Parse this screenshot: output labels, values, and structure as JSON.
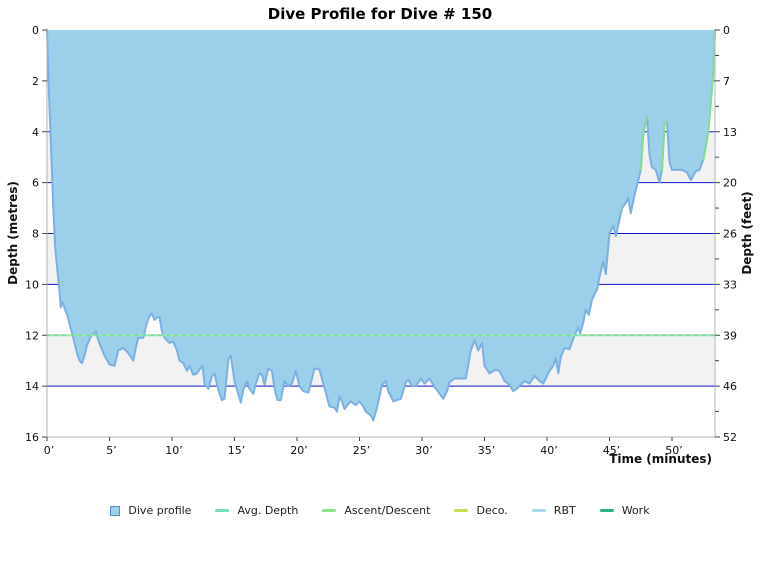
{
  "title": "Dive Profile for Dive # 150",
  "axes": {
    "left_label": "Depth (metres)",
    "right_label": "Depth (feet)",
    "bottom_label": "Time (minutes)",
    "left_tick_labels": [
      "0",
      "2",
      "4",
      "6",
      "8",
      "10",
      "12",
      "14",
      "16"
    ],
    "right_tick_labels": [
      "0",
      "7",
      "13",
      "20",
      "26",
      "33",
      "39",
      "46",
      "52"
    ],
    "bottom_tick_labels": [
      "0’",
      "5’",
      "10’",
      "15’",
      "20’",
      "25’",
      "30’",
      "35’",
      "40’",
      "45’",
      "50’"
    ]
  },
  "legend": [
    {
      "label": "Dive profile",
      "marker": "square",
      "color": "#9cd0ea",
      "border": "#5b8dc8"
    },
    {
      "label": "Avg. Depth",
      "marker": "line",
      "color": "#74ddbe"
    },
    {
      "label": "Ascent/Descent",
      "marker": "line",
      "color": "#8ce08c"
    },
    {
      "label": "Deco.",
      "marker": "line",
      "color": "#cdda52"
    },
    {
      "label": "RBT",
      "marker": "line",
      "color": "#a6d9ef"
    },
    {
      "label": "Work",
      "marker": "line",
      "color": "#2eb384"
    }
  ],
  "colors": {
    "profile_fill": "#9ccfea",
    "profile_edge": "#7cb0e2",
    "ascent_edge": "#84de8c",
    "gridline_blue": "#1515ce",
    "avg_line_green": "#9ae69e",
    "avg_line_teal": "#6fd7ce",
    "band_gray": "#f2f2f2",
    "axis_line": "#abb5bf",
    "tick_color": "#444444",
    "text_color": "#111111"
  },
  "chart_data": {
    "type": "area",
    "title": "Dive Profile for Dive # 150",
    "xlabel": "Time (minutes)",
    "ylabel_left": "Depth (metres)",
    "ylabel_right": "Depth (feet)",
    "xlim_minutes": [
      0,
      53.44
    ],
    "ylim_metres": [
      0,
      16
    ],
    "x_major_tick_minutes": 5,
    "y_major_tick_metres": 2,
    "avg_depth_m": 12,
    "max_depth_m": 15.35,
    "gridlines_m": [
      2,
      4,
      6,
      8,
      10,
      12,
      14
    ],
    "gray_bands_m": [
      [
        0,
        2
      ],
      [
        4,
        6
      ],
      [
        8,
        10
      ],
      [
        12,
        14
      ]
    ],
    "ascent_green_segments_min": [
      [
        47.4,
        48.0
      ],
      [
        49.2,
        49.6
      ],
      [
        52.4,
        53.44
      ]
    ],
    "profile_time_depth": [
      [
        0,
        0
      ],
      [
        0.1,
        1.6
      ],
      [
        0.2,
        3.1
      ],
      [
        0.35,
        5.0
      ],
      [
        0.5,
        7.0
      ],
      [
        0.65,
        8.5
      ],
      [
        0.8,
        9.3
      ],
      [
        0.95,
        10.0
      ],
      [
        1.1,
        10.9
      ],
      [
        1.25,
        10.7
      ],
      [
        1.45,
        11.0
      ],
      [
        1.65,
        11.25
      ],
      [
        1.85,
        11.65
      ],
      [
        2.0,
        11.9
      ],
      [
        2.2,
        12.3
      ],
      [
        2.4,
        12.7
      ],
      [
        2.6,
        13.0
      ],
      [
        2.8,
        13.1
      ],
      [
        3.0,
        12.8
      ],
      [
        3.2,
        12.4
      ],
      [
        3.5,
        12.05
      ],
      [
        3.7,
        11.95
      ],
      [
        3.9,
        11.85
      ],
      [
        4.1,
        12.2
      ],
      [
        4.3,
        12.45
      ],
      [
        4.6,
        12.8
      ],
      [
        5.0,
        13.15
      ],
      [
        5.4,
        13.2
      ],
      [
        5.7,
        12.6
      ],
      [
        6.1,
        12.5
      ],
      [
        6.5,
        12.7
      ],
      [
        6.9,
        13.0
      ],
      [
        7.1,
        12.5
      ],
      [
        7.3,
        12.1
      ],
      [
        7.7,
        12.1
      ],
      [
        8.0,
        11.5
      ],
      [
        8.2,
        11.25
      ],
      [
        8.4,
        11.15
      ],
      [
        8.6,
        11.4
      ],
      [
        8.8,
        11.3
      ],
      [
        9.0,
        11.3
      ],
      [
        9.2,
        11.85
      ],
      [
        9.4,
        12.1
      ],
      [
        9.8,
        12.3
      ],
      [
        10.1,
        12.25
      ],
      [
        10.4,
        12.6
      ],
      [
        10.6,
        13.0
      ],
      [
        10.9,
        13.1
      ],
      [
        11.2,
        13.4
      ],
      [
        11.4,
        13.2
      ],
      [
        11.7,
        13.55
      ],
      [
        12.0,
        13.5
      ],
      [
        12.2,
        13.35
      ],
      [
        12.45,
        13.2
      ],
      [
        12.6,
        13.9
      ],
      [
        12.9,
        14.1
      ],
      [
        13.2,
        13.6
      ],
      [
        13.4,
        13.5
      ],
      [
        13.7,
        14.15
      ],
      [
        14.0,
        14.55
      ],
      [
        14.2,
        14.5
      ],
      [
        14.5,
        12.95
      ],
      [
        14.7,
        12.8
      ],
      [
        15.0,
        13.8
      ],
      [
        15.2,
        14.15
      ],
      [
        15.5,
        14.65
      ],
      [
        15.7,
        14.15
      ],
      [
        16.0,
        13.8
      ],
      [
        16.2,
        14.1
      ],
      [
        16.5,
        14.3
      ],
      [
        16.7,
        13.9
      ],
      [
        17.0,
        13.5
      ],
      [
        17.2,
        13.55
      ],
      [
        17.4,
        13.95
      ],
      [
        17.7,
        13.3
      ],
      [
        18.0,
        13.4
      ],
      [
        18.2,
        14.1
      ],
      [
        18.45,
        14.55
      ],
      [
        18.7,
        14.55
      ],
      [
        19.0,
        13.8
      ],
      [
        19.3,
        14.0
      ],
      [
        19.6,
        13.9
      ],
      [
        19.9,
        13.4
      ],
      [
        20.2,
        14.0
      ],
      [
        20.5,
        14.2
      ],
      [
        20.9,
        14.25
      ],
      [
        21.2,
        13.7
      ],
      [
        21.4,
        13.3
      ],
      [
        21.8,
        13.35
      ],
      [
        22.1,
        13.9
      ],
      [
        22.6,
        14.8
      ],
      [
        23.0,
        14.85
      ],
      [
        23.2,
        15.0
      ],
      [
        23.4,
        14.4
      ],
      [
        23.6,
        14.6
      ],
      [
        23.8,
        14.9
      ],
      [
        24.1,
        14.7
      ],
      [
        24.3,
        14.6
      ],
      [
        24.7,
        14.75
      ],
      [
        25.0,
        14.6
      ],
      [
        25.3,
        14.8
      ],
      [
        25.5,
        15.0
      ],
      [
        25.9,
        15.15
      ],
      [
        26.1,
        15.35
      ],
      [
        26.4,
        14.85
      ],
      [
        26.8,
        13.95
      ],
      [
        27.1,
        13.8
      ],
      [
        27.3,
        14.2
      ],
      [
        27.7,
        14.6
      ],
      [
        28.0,
        14.55
      ],
      [
        28.3,
        14.5
      ],
      [
        28.7,
        13.85
      ],
      [
        28.9,
        13.75
      ],
      [
        29.2,
        14.0
      ],
      [
        29.5,
        14.0
      ],
      [
        29.9,
        13.7
      ],
      [
        30.2,
        13.9
      ],
      [
        30.6,
        13.7
      ],
      [
        31.1,
        14.1
      ],
      [
        31.7,
        14.5
      ],
      [
        32.0,
        14.2
      ],
      [
        32.2,
        13.85
      ],
      [
        32.6,
        13.7
      ],
      [
        33.0,
        13.7
      ],
      [
        33.5,
        13.7
      ],
      [
        33.9,
        12.6
      ],
      [
        34.2,
        12.2
      ],
      [
        34.5,
        12.6
      ],
      [
        34.8,
        12.3
      ],
      [
        35.0,
        13.2
      ],
      [
        35.4,
        13.5
      ],
      [
        35.9,
        13.35
      ],
      [
        36.2,
        13.4
      ],
      [
        36.6,
        13.8
      ],
      [
        37.0,
        13.95
      ],
      [
        37.3,
        14.2
      ],
      [
        37.6,
        14.1
      ],
      [
        38.2,
        13.8
      ],
      [
        38.6,
        13.9
      ],
      [
        39.0,
        13.6
      ],
      [
        39.4,
        13.8
      ],
      [
        39.7,
        13.9
      ],
      [
        40.2,
        13.4
      ],
      [
        40.5,
        13.2
      ],
      [
        40.7,
        12.9
      ],
      [
        40.9,
        13.5
      ],
      [
        41.1,
        12.85
      ],
      [
        41.4,
        12.5
      ],
      [
        41.8,
        12.55
      ],
      [
        42.2,
        12.0
      ],
      [
        42.5,
        11.7
      ],
      [
        42.65,
        11.95
      ],
      [
        42.9,
        11.5
      ],
      [
        43.1,
        11.0
      ],
      [
        43.35,
        11.2
      ],
      [
        43.6,
        10.6
      ],
      [
        44.0,
        10.2
      ],
      [
        44.2,
        9.7
      ],
      [
        44.5,
        9.1
      ],
      [
        44.7,
        9.6
      ],
      [
        45.0,
        8.0
      ],
      [
        45.3,
        7.7
      ],
      [
        45.5,
        8.1
      ],
      [
        45.8,
        7.45
      ],
      [
        46.0,
        7.0
      ],
      [
        46.3,
        6.8
      ],
      [
        46.5,
        6.6
      ],
      [
        46.7,
        7.2
      ],
      [
        47.0,
        6.5
      ],
      [
        47.2,
        6.1
      ],
      [
        47.5,
        5.5
      ],
      [
        47.7,
        4.1
      ],
      [
        48.0,
        3.4
      ],
      [
        48.2,
        4.9
      ],
      [
        48.4,
        5.4
      ],
      [
        48.7,
        5.5
      ],
      [
        49.0,
        6.0
      ],
      [
        49.2,
        5.5
      ],
      [
        49.4,
        3.7
      ],
      [
        49.6,
        3.6
      ],
      [
        49.8,
        5.2
      ],
      [
        50.0,
        5.5
      ],
      [
        50.4,
        5.5
      ],
      [
        50.8,
        5.5
      ],
      [
        51.2,
        5.6
      ],
      [
        51.5,
        5.9
      ],
      [
        51.9,
        5.55
      ],
      [
        52.2,
        5.5
      ],
      [
        52.5,
        5.1
      ],
      [
        52.7,
        4.6
      ],
      [
        52.9,
        4.0
      ],
      [
        53.05,
        3.2
      ],
      [
        53.2,
        2.3
      ],
      [
        53.3,
        1.6
      ],
      [
        53.44,
        0
      ]
    ],
    "legend_entries": [
      "Dive profile",
      "Avg. Depth",
      "Ascent/Descent",
      "Deco.",
      "RBT",
      "Work"
    ],
    "legend_position": "bottom-center",
    "grid": "horizontal-blue-lines-with-alternating-gray-bands"
  }
}
